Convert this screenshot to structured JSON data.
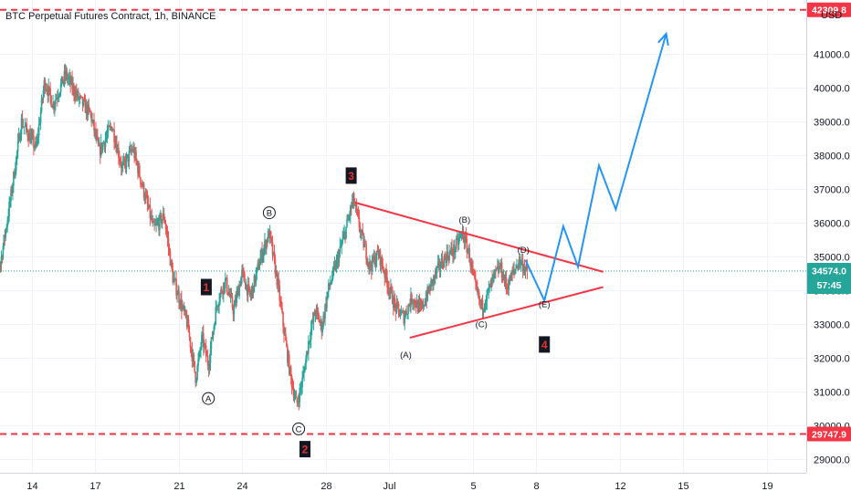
{
  "chart_data": {
    "type": "candlestick",
    "title": "BTC Perpetual Futures Contract, 1h, BINANCE",
    "currency": "USD",
    "ylim": [
      28600,
      42600
    ],
    "y_ticks": [
      29000,
      30000,
      31000,
      32000,
      33000,
      34000,
      35000,
      36000,
      37000,
      38000,
      39000,
      40000,
      41000
    ],
    "y_tick_labels": [
      "29000.0",
      "30000.0",
      "31000.0",
      "32000.0",
      "33000.0",
      "34000.0",
      "35000.0",
      "36000.0",
      "37000.0",
      "38000.0",
      "39000.0",
      "40000.0",
      "41000.0"
    ],
    "x_ticks": [
      {
        "label": "14",
        "day": 14
      },
      {
        "label": "17",
        "day": 17
      },
      {
        "label": "21",
        "day": 21
      },
      {
        "label": "24",
        "day": 24
      },
      {
        "label": "28",
        "day": 28
      },
      {
        "label": "Jul",
        "day": 31
      },
      {
        "label": "5",
        "day": 35
      },
      {
        "label": "8",
        "day": 38
      },
      {
        "label": "12",
        "day": 42
      },
      {
        "label": "15",
        "day": 45
      },
      {
        "label": "19",
        "day": 49
      }
    ],
    "x_note": "days counted from June 1; Jul 5 = day 35",
    "price_path": [
      [
        12.0,
        35500
      ],
      [
        12.5,
        34800
      ],
      [
        13.0,
        36800
      ],
      [
        13.5,
        39000
      ],
      [
        14.2,
        38200
      ],
      [
        14.6,
        40200
      ],
      [
        15.0,
        39500
      ],
      [
        15.6,
        40400
      ],
      [
        16.2,
        39700
      ],
      [
        16.8,
        39200
      ],
      [
        17.2,
        38100
      ],
      [
        17.8,
        38900
      ],
      [
        18.3,
        37600
      ],
      [
        18.8,
        38200
      ],
      [
        19.3,
        37000
      ],
      [
        19.8,
        35800
      ],
      [
        20.3,
        36200
      ],
      [
        20.7,
        34400
      ],
      [
        21.0,
        33800
      ],
      [
        21.4,
        33000
      ],
      [
        21.8,
        31400
      ],
      [
        22.1,
        32600
      ],
      [
        22.4,
        31800
      ],
      [
        22.8,
        33600
      ],
      [
        23.2,
        34300
      ],
      [
        23.6,
        33400
      ],
      [
        24.0,
        34500
      ],
      [
        24.4,
        33800
      ],
      [
        24.9,
        35000
      ],
      [
        25.3,
        35700
      ],
      [
        25.7,
        34200
      ],
      [
        26.0,
        32800
      ],
      [
        26.3,
        31500
      ],
      [
        26.6,
        30600
      ],
      [
        26.9,
        31400
      ],
      [
        27.2,
        32600
      ],
      [
        27.5,
        33400
      ],
      [
        27.8,
        32900
      ],
      [
        28.1,
        34000
      ],
      [
        28.5,
        34800
      ],
      [
        28.9,
        35700
      ],
      [
        29.3,
        36700
      ],
      [
        29.7,
        35600
      ],
      [
        30.1,
        34700
      ],
      [
        30.5,
        35100
      ],
      [
        30.9,
        34300
      ],
      [
        31.3,
        33500
      ],
      [
        31.7,
        33200
      ],
      [
        32.1,
        33800
      ],
      [
        32.5,
        33400
      ],
      [
        32.9,
        34000
      ],
      [
        33.3,
        34600
      ],
      [
        33.7,
        35000
      ],
      [
        34.1,
        35200
      ],
      [
        34.5,
        35700
      ],
      [
        34.8,
        35100
      ],
      [
        35.1,
        34100
      ],
      [
        35.4,
        33500
      ],
      [
        35.7,
        33900
      ],
      [
        36.0,
        34400
      ],
      [
        36.3,
        34700
      ],
      [
        36.6,
        34100
      ],
      [
        36.9,
        34500
      ],
      [
        37.2,
        34900
      ],
      [
        37.6,
        34574
      ]
    ],
    "candle_seed": 7,
    "current_price": 34574.0,
    "current_price_label": "34574.0",
    "countdown_label": "57:45",
    "levels": [
      {
        "value": 42309.8,
        "label": "42309.8",
        "color": "#f23645"
      },
      {
        "value": 29747.9,
        "label": "29747.9",
        "color": "#f23645"
      }
    ],
    "triangle_lines": [
      {
        "from": [
          29.4,
          36600
        ],
        "to": [
          41.2,
          34550
        ],
        "color": "#f23645"
      },
      {
        "from": [
          32.0,
          32600
        ],
        "to": [
          41.2,
          34100
        ],
        "color": "#f23645"
      }
    ],
    "projection_path": {
      "color": "#2196f3",
      "points": [
        [
          37.5,
          34900
        ],
        [
          38.4,
          33700
        ],
        [
          39.3,
          35900
        ],
        [
          40.0,
          34700
        ],
        [
          41.0,
          37700
        ],
        [
          41.8,
          36400
        ],
        [
          44.2,
          41600
        ]
      ]
    },
    "wave_labels": [
      {
        "text": "1",
        "x": 22.3,
        "y": 34100,
        "style": "boxed"
      },
      {
        "text": "2",
        "x": 27.0,
        "y": 29300,
        "style": "boxed"
      },
      {
        "text": "3",
        "x": 29.2,
        "y": 37400,
        "style": "boxed"
      },
      {
        "text": "4",
        "x": 38.4,
        "y": 32400,
        "style": "boxed"
      }
    ],
    "circled_labels": [
      {
        "text": "A",
        "x": 22.4,
        "y": 30800
      },
      {
        "text": "B",
        "x": 25.3,
        "y": 36300
      },
      {
        "text": "C",
        "x": 26.7,
        "y": 29900
      }
    ],
    "paren_labels": [
      {
        "text": "(A)",
        "x": 31.8,
        "y": 32100
      },
      {
        "text": "(B)",
        "x": 34.6,
        "y": 36100
      },
      {
        "text": "(C)",
        "x": 35.4,
        "y": 33000
      },
      {
        "text": "(D)",
        "x": 37.4,
        "y": 35200
      },
      {
        "text": "(E)",
        "x": 38.4,
        "y": 33600
      }
    ],
    "colors": {
      "up": "#26a69a",
      "down": "#ef5350",
      "grid": "#f0f3fa",
      "axis_text": "#131722",
      "price_dotted": "#26a69a",
      "current_tag": "#26a69a",
      "wave_text": "#e5322d"
    }
  }
}
